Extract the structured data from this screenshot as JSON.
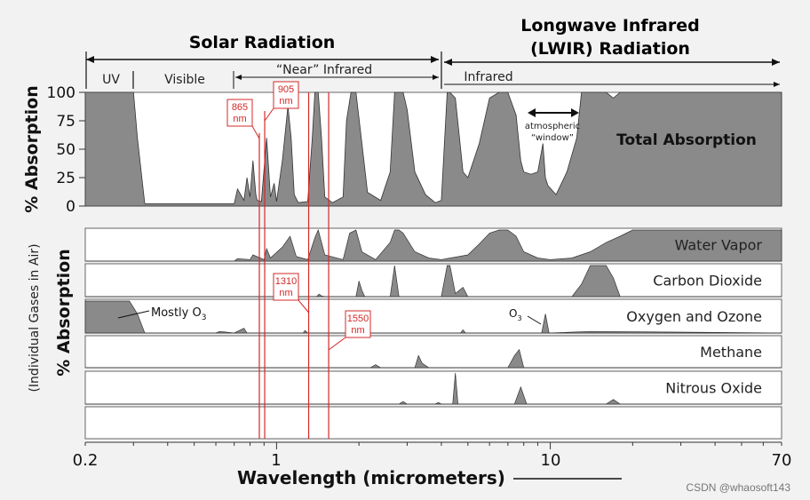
{
  "chart_data": {
    "type": "area",
    "x_scale": "log",
    "xlim": [
      0.2,
      70
    ],
    "xlabel": "Wavelength (micrometers)",
    "x_ticks": [
      "0.2",
      "1",
      "10",
      "70"
    ],
    "regions": {
      "solar": "Solar Radiation",
      "lwir_line1": "Longwave Infrared",
      "lwir_line2": "(LWIR) Radiation",
      "uv": "UV",
      "visible": "Visible",
      "near_ir": "“Near” Infrared",
      "infrared": "Infrared"
    },
    "top_panel": {
      "ylabel": "% Absorption",
      "ylim": [
        0,
        100
      ],
      "y_ticks": [
        "100",
        "75",
        "50",
        "25",
        "0"
      ],
      "series_label": "Total Absorption",
      "window_label_1": "atmospheric",
      "window_label_2": "“window”",
      "x": [
        0.2,
        0.3,
        0.31,
        0.33,
        0.7,
        0.72,
        0.76,
        0.78,
        0.8,
        0.82,
        0.84,
        0.85,
        0.88,
        0.92,
        0.95,
        0.98,
        1.0,
        1.05,
        1.1,
        1.13,
        1.16,
        1.2,
        1.3,
        1.35,
        1.38,
        1.42,
        1.46,
        1.5,
        1.6,
        1.75,
        1.8,
        1.87,
        1.95,
        2.05,
        2.15,
        2.4,
        2.6,
        2.7,
        2.8,
        2.9,
        3.0,
        3.2,
        3.5,
        3.8,
        4.0,
        4.2,
        4.3,
        4.5,
        4.8,
        5.0,
        5.5,
        6.0,
        6.5,
        7.0,
        7.5,
        7.8,
        8.0,
        8.5,
        9.0,
        9.4,
        9.6,
        9.8,
        10.5,
        11.5,
        12.5,
        13.0,
        13.5,
        14.0,
        15.0,
        16.0,
        17.0,
        18.0,
        20.0,
        25.0,
        30.0,
        40.0,
        50.0,
        60.0,
        70.0
      ],
      "values": [
        100,
        100,
        60,
        2,
        2,
        15,
        5,
        25,
        8,
        40,
        10,
        5,
        4,
        60,
        8,
        20,
        4,
        40,
        88,
        60,
        10,
        3,
        4,
        60,
        100,
        100,
        60,
        8,
        3,
        8,
        75,
        100,
        100,
        55,
        12,
        5,
        30,
        100,
        100,
        100,
        85,
        30,
        10,
        3,
        5,
        100,
        100,
        95,
        30,
        25,
        55,
        95,
        100,
        100,
        80,
        40,
        30,
        28,
        30,
        55,
        25,
        18,
        10,
        30,
        60,
        100,
        100,
        100,
        100,
        100,
        95,
        100,
        100,
        100,
        100,
        100,
        100,
        100,
        100
      ]
    },
    "bottom_panel": {
      "ylabel_main": "% Absorption",
      "ylabel_sub": "(Individual Gases in Air)",
      "mostly_o3": "Mostly O",
      "o3_label": "O",
      "o3_sub": "3",
      "series": [
        {
          "name": "Water Vapor",
          "x": [
            0.2,
            0.7,
            0.72,
            0.8,
            0.82,
            0.9,
            0.92,
            0.95,
            1.05,
            1.12,
            1.18,
            1.3,
            1.38,
            1.42,
            1.5,
            1.75,
            1.85,
            1.95,
            2.05,
            2.3,
            2.6,
            2.7,
            2.8,
            2.9,
            3.2,
            3.6,
            4.0,
            5.0,
            5.5,
            6.0,
            6.5,
            7.0,
            7.5,
            8.0,
            9.0,
            10.0,
            12.0,
            14.0,
            16.0,
            18.0,
            20.0,
            30.0,
            50.0,
            70.0
          ],
          "values": [
            0,
            0,
            8,
            5,
            20,
            5,
            40,
            10,
            45,
            80,
            15,
            5,
            75,
            100,
            20,
            5,
            90,
            100,
            30,
            5,
            60,
            100,
            100,
            90,
            30,
            10,
            5,
            20,
            55,
            90,
            100,
            100,
            80,
            30,
            10,
            5,
            10,
            30,
            60,
            80,
            100,
            100,
            100,
            100
          ]
        },
        {
          "name": "Carbon Dioxide",
          "x": [
            0.2,
            1.4,
            1.43,
            1.46,
            1.5,
            1.95,
            2.0,
            2.05,
            2.1,
            2.6,
            2.7,
            2.8,
            4.0,
            4.2,
            4.3,
            4.5,
            4.8,
            5.0,
            12.0,
            13.0,
            14.0,
            15.0,
            16.0,
            17.0,
            18.0,
            70.0
          ],
          "values": [
            0,
            0,
            8,
            2,
            0,
            0,
            50,
            20,
            0,
            0,
            100,
            0,
            0,
            100,
            100,
            10,
            30,
            0,
            0,
            40,
            100,
            100,
            100,
            60,
            0,
            0
          ]
        },
        {
          "name": "Oxygen and Ozone",
          "x": [
            0.2,
            0.29,
            0.31,
            0.33,
            0.6,
            0.62,
            0.7,
            0.76,
            0.78,
            1.25,
            1.27,
            1.3,
            4.7,
            4.8,
            4.9,
            9.3,
            9.6,
            9.9,
            14.0,
            70.0
          ],
          "values": [
            100,
            100,
            60,
            0,
            0,
            5,
            0,
            15,
            0,
            0,
            8,
            0,
            0,
            10,
            0,
            0,
            60,
            0,
            5,
            0
          ]
        },
        {
          "name": "Methane",
          "x": [
            0.2,
            2.2,
            2.3,
            2.4,
            3.2,
            3.3,
            3.4,
            3.6,
            7.0,
            7.4,
            7.7,
            8.0,
            70.0
          ],
          "values": [
            0,
            0,
            10,
            0,
            0,
            40,
            15,
            0,
            0,
            40,
            60,
            0,
            0
          ]
        },
        {
          "name": "Nitrous Oxide",
          "x": [
            0.2,
            2.8,
            2.9,
            3.0,
            3.8,
            3.9,
            4.0,
            4.4,
            4.5,
            4.6,
            7.4,
            7.8,
            8.2,
            16.0,
            17.0,
            18.0,
            70.0
          ],
          "values": [
            0,
            0,
            8,
            0,
            0,
            5,
            0,
            0,
            100,
            0,
            0,
            55,
            0,
            0,
            15,
            0,
            0
          ]
        }
      ]
    },
    "markers": [
      {
        "wavelength_um": 0.865,
        "line1": "865",
        "line2": "nm"
      },
      {
        "wavelength_um": 0.905,
        "line1": "905",
        "line2": "nm"
      },
      {
        "wavelength_um": 1.31,
        "line1": "1310",
        "line2": "nm"
      },
      {
        "wavelength_um": 1.55,
        "line1": "1550",
        "line2": "nm"
      }
    ],
    "colors": {
      "fill": "#8a8a8a",
      "stroke": "#333333",
      "marker": "#d62828",
      "panel_bg": "#ffffff"
    }
  },
  "watermark": "CSDN @whaosoft143"
}
